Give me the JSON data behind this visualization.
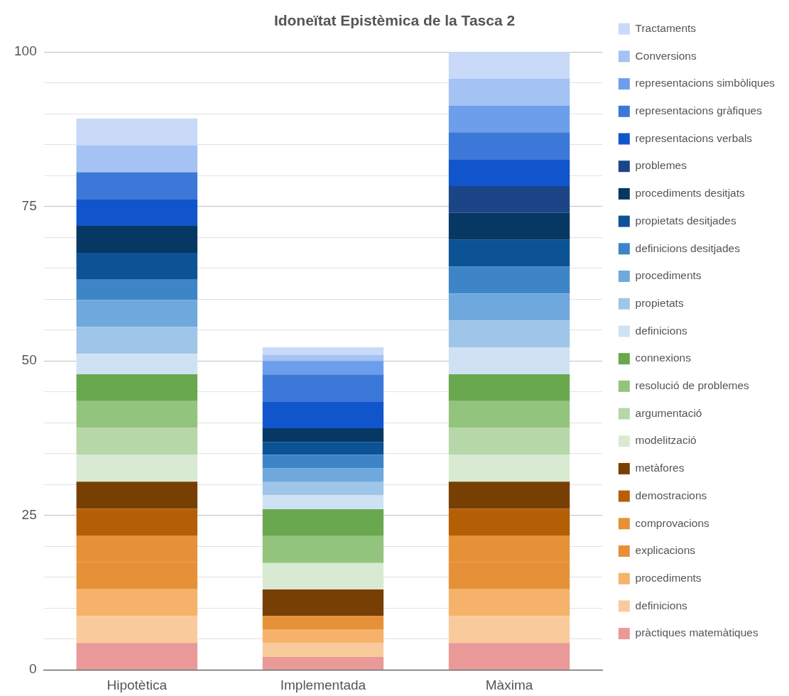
{
  "chart_data": {
    "type": "bar",
    "title": "Idoneïtat Epistèmica de la Tasca 2",
    "categories": [
      "Hipotètica",
      "Implementada",
      "Màxima"
    ],
    "stacked": true,
    "grid": "y",
    "legend": "right",
    "ylim": [
      0,
      100
    ],
    "yticks": [
      0,
      {
        "value": 5,
        "label": null
      },
      {
        "value": 10,
        "label": null
      },
      {
        "value": 15,
        "label": null
      },
      {
        "value": 20,
        "label": null
      },
      25,
      {
        "value": 30,
        "label": null
      },
      {
        "value": 35,
        "label": null
      },
      {
        "value": 40,
        "label": null
      },
      {
        "value": 45,
        "label": null
      },
      50,
      {
        "value": 55,
        "label": null
      },
      {
        "value": 60,
        "label": null
      },
      {
        "value": 65,
        "label": null
      },
      {
        "value": 70,
        "label": null
      },
      75,
      {
        "value": 80,
        "label": null
      },
      {
        "value": 85,
        "label": null
      },
      {
        "value": 90,
        "label": null
      },
      {
        "value": 95,
        "label": null
      },
      100
    ],
    "series": [
      {
        "name": "pràctiques matemàtiques",
        "color": "#ea9999",
        "values": [
          4.35,
          2.1,
          4.35
        ]
      },
      {
        "name": "definicions",
        "color": "#f9cb9c",
        "values": [
          4.35,
          2.3,
          4.35
        ]
      },
      {
        "name": "procediments",
        "color": "#f6b26b",
        "values": [
          4.35,
          2.1,
          4.35
        ]
      },
      {
        "name": "explicacions",
        "color": "#e69138",
        "values": [
          4.35,
          2.2,
          4.35
        ]
      },
      {
        "name": "comprovacions",
        "color": "#e69138",
        "values": [
          4.35,
          0,
          4.35
        ]
      },
      {
        "name": "demostracions",
        "color": "#b45f06",
        "values": [
          4.35,
          0,
          4.35
        ]
      },
      {
        "name": "metàfores",
        "color": "#783f04",
        "values": [
          4.35,
          4.3,
          4.35
        ]
      },
      {
        "name": "modelització",
        "color": "#d9ead3",
        "values": [
          4.35,
          4.3,
          4.35
        ]
      },
      {
        "name": "argumentació",
        "color": "#b6d7a8",
        "values": [
          4.35,
          0,
          4.35
        ]
      },
      {
        "name": "resolució de problemes",
        "color": "#93c47d",
        "values": [
          4.35,
          4.35,
          4.35
        ]
      },
      {
        "name": "connexions",
        "color": "#6aa84f",
        "values": [
          4.35,
          4.35,
          4.35
        ]
      },
      {
        "name": "definicions",
        "color": "#cfe2f3",
        "values": [
          3.3,
          2.3,
          4.35
        ]
      },
      {
        "name": "propietats",
        "color": "#9fc5e8",
        "values": [
          4.35,
          2.1,
          4.35
        ]
      },
      {
        "name": "procediments",
        "color": "#6fa8dc",
        "values": [
          4.35,
          2.2,
          4.35
        ]
      },
      {
        "name": "definicions desitjades",
        "color": "#3d85c6",
        "values": [
          3.3,
          2.2,
          4.35
        ]
      },
      {
        "name": "propietats desitjades",
        "color": "#0b5394",
        "values": [
          4.35,
          2.1,
          4.35
        ]
      },
      {
        "name": "procediments desitjats",
        "color": "#073763",
        "values": [
          4.35,
          2.2,
          4.35
        ]
      },
      {
        "name": "problemes",
        "color": "#1c4587",
        "values": [
          0,
          0,
          4.35
        ]
      },
      {
        "name": "representacions verbals",
        "color": "#1155cc",
        "values": [
          4.35,
          4.35,
          4.35
        ]
      },
      {
        "name": "representacions gràfiques",
        "color": "#3c78d8",
        "values": [
          4.35,
          4.35,
          4.35
        ]
      },
      {
        "name": "representacions simbòliques",
        "color": "#6d9eeb",
        "values": [
          0,
          2.2,
          4.35
        ]
      },
      {
        "name": "Conversions",
        "color": "#a4c2f4",
        "values": [
          4.35,
          1.0,
          4.35
        ]
      },
      {
        "name": "Tractaments",
        "color": "#c9daf8",
        "values": [
          4.35,
          1.2,
          4.35
        ]
      }
    ]
  }
}
